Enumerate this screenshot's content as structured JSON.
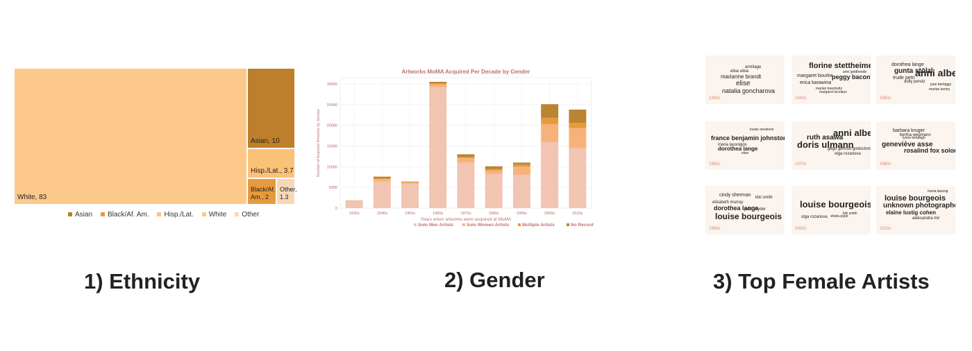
{
  "captions": {
    "ethnicity": "1) Ethnicity",
    "gender": "2) Gender",
    "artists": "3) Top Female Artists"
  },
  "chart_data": [
    {
      "type": "treemap",
      "title": "",
      "values": [
        {
          "name": "White",
          "value": 83,
          "label": "White, 83",
          "color": "#fdc98a"
        },
        {
          "name": "Asian",
          "value": 10,
          "label": "Asian, 10",
          "color": "#bd7f2b"
        },
        {
          "name": "Hisp./Lat.",
          "value": 3.7,
          "label": "Hisp./Lat., 3.7",
          "color": "#fcc178"
        },
        {
          "name": "Black/Af. Am.",
          "value": 2,
          "label": "Black/Af. Am., 2",
          "color": "#e79a3b"
        },
        {
          "name": "Other",
          "value": 1.3,
          "label": "Other, 1.3",
          "color": "#f6d8b9"
        }
      ],
      "legend": {
        "placement": "bottom",
        "entries": [
          {
            "label": "Asian",
            "color": "#bd7f2b"
          },
          {
            "label": "Black/Af. Am.",
            "color": "#e79a3b"
          },
          {
            "label": "Hisp./Lat.",
            "color": "#fcc178"
          },
          {
            "label": "White",
            "color": "#fdc98a"
          },
          {
            "label": "Other",
            "color": "#f6d8b9"
          }
        ]
      }
    },
    {
      "type": "bar",
      "stacked": true,
      "title": "Artworks MoMA Acquired Per Decade by Gender",
      "xlabel": "Years when artworks were acquired at MoMA",
      "ylabel": "Number of Acquired Artworks by Gender",
      "ylim": [
        0,
        30000
      ],
      "yticks": [
        0,
        5000,
        10000,
        15000,
        20000,
        25000,
        30000
      ],
      "grid": true,
      "categories": [
        "1930s",
        "1940s",
        "1950s",
        "1960s",
        "1970s",
        "1980s",
        "1990s",
        "2000s",
        "2010s"
      ],
      "series": [
        {
          "name": "Solo Men Artists",
          "color": "#f2c4b2",
          "values": [
            1700,
            6400,
            5900,
            29200,
            11000,
            8300,
            8000,
            16000,
            14500
          ]
        },
        {
          "name": "Solo Women Artists",
          "color": "#f7b27a",
          "values": [
            100,
            600,
            300,
            700,
            1100,
            800,
            2000,
            4300,
            4800
          ]
        },
        {
          "name": "Multiple Artists",
          "color": "#e59a3c",
          "values": [
            20,
            200,
            100,
            200,
            200,
            300,
            500,
            1500,
            1300
          ]
        },
        {
          "name": "No Record",
          "color": "#b98531",
          "values": [
            30,
            400,
            100,
            400,
            700,
            700,
            500,
            3300,
            3200
          ]
        }
      ],
      "legend": {
        "placement": "bottom"
      }
    },
    {
      "type": "wordcloud",
      "panels": [
        {
          "decade": "1930s",
          "words": [
            "armitage",
            "elise elise",
            "marianne brandt",
            "elise",
            "natalia goncharova"
          ]
        },
        {
          "decade": "1940s",
          "words": [
            "florine stettheimer",
            "anni goldheede",
            "margaret bourke",
            "peggy bacon",
            "erica karawina",
            "marian boeshultz",
            "margaret nicolaus"
          ]
        },
        {
          "decade": "1950s",
          "words": [
            "dorothea lange",
            "gunta stölzl",
            "anni albers",
            "trude petri",
            "dolly perutz",
            "joan berbiggs",
            "marian kenny"
          ]
        },
        {
          "decade": "1960s",
          "words": [
            "louise nevelson",
            "france benjamin johnston",
            "maria lassnigos",
            "dorothea lange",
            "elise"
          ]
        },
        {
          "decade": "1970s",
          "words": [
            "anni albers",
            "ruth asawa",
            "doris ulmann",
            "gego gertrud goldschmidt",
            "olga rozanova"
          ]
        },
        {
          "decade": "1980s",
          "words": [
            "barbara kruger",
            "bertha wegmann",
            "lynne lerbaugh",
            "geneviève asse",
            "rosalind fox solomon"
          ]
        },
        {
          "decade": "1990s",
          "words": [
            "cindy sherman",
            "kiki smith",
            "elizabeth murray",
            "dorothea lange",
            "joan snyder",
            "louise bourgeois"
          ]
        },
        {
          "decade": "2000s",
          "words": [
            "louise bourgeois",
            "olga rozanova",
            "sheila pepe",
            "kiki smith"
          ]
        },
        {
          "decade": "2010s",
          "words": [
            "maria lassnig",
            "louise bourgeois",
            "unknown photographer",
            "elaine lustig cohen",
            "aleksandra mir"
          ]
        }
      ]
    }
  ]
}
